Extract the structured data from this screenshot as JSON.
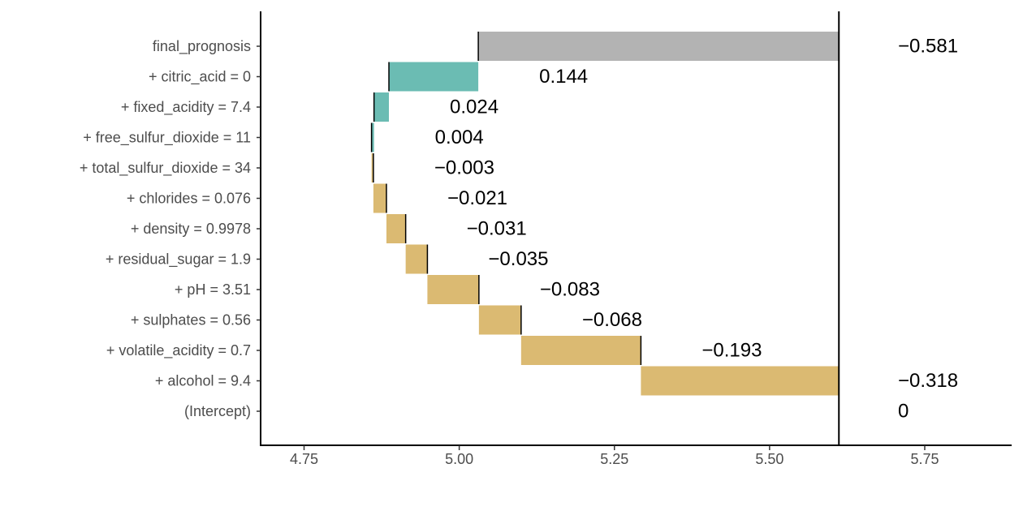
{
  "chart_data": {
    "type": "waterfall",
    "title": "",
    "xlabel": "",
    "ylabel": "",
    "xlim": [
      4.68,
      5.89
    ],
    "intercept": 5.6117,
    "x_ticks": [
      {
        "value": 4.75,
        "label": "4.75"
      },
      {
        "value": 5.0,
        "label": "5.00"
      },
      {
        "value": 5.25,
        "label": "5.25"
      },
      {
        "value": 5.5,
        "label": "5.50"
      },
      {
        "value": 5.75,
        "label": "5.75"
      }
    ],
    "rows": [
      {
        "label": "final_prognosis",
        "start": 5.6117,
        "end": 5.0307,
        "value_label": "−0.581",
        "kind": "final"
      },
      {
        "label": "+ citric_acid = 0",
        "start": 5.0307,
        "end": 4.8867,
        "value_label": "0.144",
        "kind": "positive"
      },
      {
        "label": "+ fixed_acidity = 7.4",
        "start": 4.8867,
        "end": 4.8627,
        "value_label": "0.024",
        "kind": "positive"
      },
      {
        "label": "+ free_sulfur_dioxide = 11",
        "start": 4.8627,
        "end": 4.8587,
        "value_label": "0.004",
        "kind": "positive"
      },
      {
        "label": "+ total_sulfur_dioxide = 34",
        "start": 4.8587,
        "end": 4.8617,
        "value_label": "−0.003",
        "kind": "negative"
      },
      {
        "label": "+ chlorides = 0.076",
        "start": 4.8617,
        "end": 4.8827,
        "value_label": "−0.021",
        "kind": "negative"
      },
      {
        "label": "+ density = 0.9978",
        "start": 4.8827,
        "end": 4.9137,
        "value_label": "−0.031",
        "kind": "negative"
      },
      {
        "label": "+ residual_sugar = 1.9",
        "start": 4.9137,
        "end": 4.9487,
        "value_label": "−0.035",
        "kind": "negative"
      },
      {
        "label": "+ pH = 3.51",
        "start": 4.9487,
        "end": 5.0317,
        "value_label": "−0.083",
        "kind": "negative"
      },
      {
        "label": "+ sulphates = 0.56",
        "start": 5.0317,
        "end": 5.0997,
        "value_label": "−0.068",
        "kind": "negative"
      },
      {
        "label": "+ volatile_acidity = 0.7",
        "start": 5.0997,
        "end": 5.2927,
        "value_label": "−0.193",
        "kind": "negative"
      },
      {
        "label": "+ alcohol = 9.4",
        "start": 5.2927,
        "end": 5.6117,
        "value_label": "−0.318",
        "kind": "negative"
      },
      {
        "label": "(Intercept)",
        "start": 5.6117,
        "end": 5.6117,
        "value_label": "0",
        "kind": "intercept"
      }
    ],
    "colors": {
      "positive": "#6bbcb3",
      "negative": "#dbba72",
      "final": "#b3b3b3",
      "axis": "#000000"
    }
  }
}
